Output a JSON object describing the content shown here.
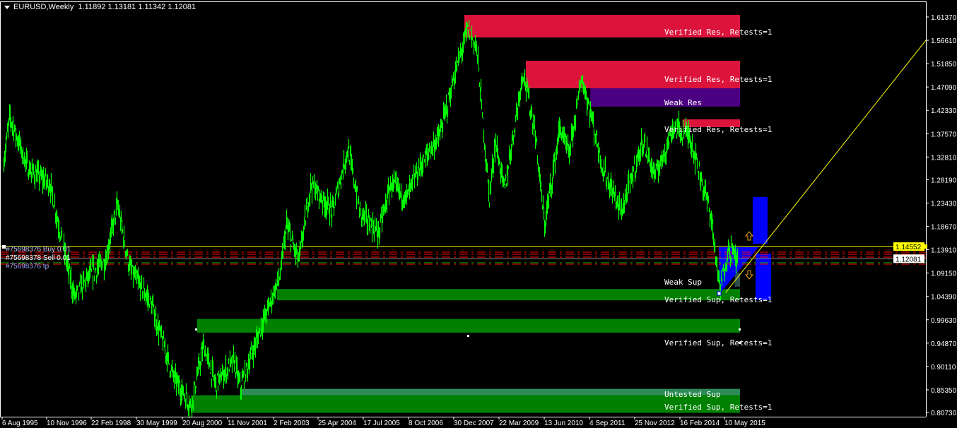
{
  "header": {
    "symbol_timeframe": "EURUSD,Weekly",
    "ohlc": "1.11892 1.13181 1.11342 1.12081"
  },
  "colors": {
    "background": "#000000",
    "price": "#00ff00",
    "resistance": "#dc143c",
    "weak_resistance": "#4b0082",
    "support": "#008000",
    "untested_support": "#2e8b57",
    "blue_box": "#0000ff",
    "trendline": "#ffff00",
    "axis": "#ffffff"
  },
  "chart_data": {
    "type": "line",
    "symbol": "EURUSD",
    "timeframe": "Weekly",
    "ylim": [
      0.8073,
      1.6137
    ],
    "y_ticks": [
      "1.61370",
      "1.56610",
      "1.51850",
      "1.47090",
      "1.42330",
      "1.37570",
      "1.32810",
      "1.28190",
      "1.23430",
      "1.18670",
      "1.13910",
      "1.09150",
      "1.04390",
      "0.99630",
      "0.94870",
      "0.90110",
      "0.85350",
      "0.80730"
    ],
    "x_ticks": [
      "6 Aug 1995",
      "10 Nov 1996",
      "22 Feb 1998",
      "30 May 1999",
      "20 Aug 2000",
      "11 Nov 2001",
      "2 Feb 2003",
      "25 Apr 2004",
      "17 Jul 2005",
      "8 Oct 2006",
      "30 Dec 2007",
      "22 Mar 2009",
      "13 Jun 2010",
      "4 Sep 2011",
      "25 Nov 2012",
      "16 Feb 2014",
      "10 May 2015"
    ],
    "price_path": [
      [
        "1995-08",
        1.317
      ],
      [
        "1995-10",
        1.411
      ],
      [
        "1996-04",
        1.303
      ],
      [
        "1996-11",
        1.274
      ],
      [
        "1997-07",
        1.043
      ],
      [
        "1997-12",
        1.087
      ],
      [
        "1998-05",
        1.115
      ],
      [
        "1998-09",
        1.231
      ],
      [
        "1999-01",
        1.101
      ],
      [
        "1999-08",
        1.029
      ],
      [
        "2000-03",
        0.885
      ],
      [
        "2000-09",
        0.82
      ],
      [
        "2001-01",
        0.943
      ],
      [
        "2001-05",
        0.864
      ],
      [
        "2001-11",
        0.914
      ],
      [
        "2002-01",
        0.857
      ],
      [
        "2002-08",
        0.986
      ],
      [
        "2003-02",
        1.087
      ],
      [
        "2003-04",
        1.188
      ],
      [
        "2003-08",
        1.115
      ],
      [
        "2003-12",
        1.274
      ],
      [
        "2004-07",
        1.216
      ],
      [
        "2004-12",
        1.346
      ],
      [
        "2005-04",
        1.216
      ],
      [
        "2005-10",
        1.173
      ],
      [
        "2006-02",
        1.274
      ],
      [
        "2006-07",
        1.245
      ],
      [
        "2006-11",
        1.303
      ],
      [
        "2007-06",
        1.375
      ],
      [
        "2007-10",
        1.476
      ],
      [
        "2008-03",
        1.591
      ],
      [
        "2008-06",
        1.547
      ],
      [
        "2008-10",
        1.245
      ],
      [
        "2008-12",
        1.36
      ],
      [
        "2009-03",
        1.26
      ],
      [
        "2009-09",
        1.505
      ],
      [
        "2010-01",
        1.375
      ],
      [
        "2010-04",
        1.188
      ],
      [
        "2010-09",
        1.389
      ],
      [
        "2010-12",
        1.332
      ],
      [
        "2011-04",
        1.49
      ],
      [
        "2011-07",
        1.418
      ],
      [
        "2011-11",
        1.303
      ],
      [
        "2012-05",
        1.216
      ],
      [
        "2012-12",
        1.361
      ],
      [
        "2013-04",
        1.289
      ],
      [
        "2013-10",
        1.389
      ],
      [
        "2014-03",
        1.375
      ],
      [
        "2014-08",
        1.26
      ],
      [
        "2014-10",
        1.216
      ],
      [
        "2015-01",
        1.057
      ],
      [
        "2015-04",
        1.144
      ],
      [
        "2015-07",
        1.115
      ]
    ],
    "zones": [
      {
        "label": "Verified Res, Retests=1",
        "kind": "resistance",
        "start": "2008-02",
        "top": 1.618,
        "bottom": 1.5719
      },
      {
        "label": "Verified Res, Retests=1",
        "kind": "resistance",
        "start": "2009-10",
        "top": 1.5244,
        "bottom": 1.4683
      },
      {
        "label": "Weak Res",
        "kind": "weak_resistance",
        "start": "2011-07",
        "top": 1.4683,
        "bottom": 1.4308
      },
      {
        "label": "Verified Res, Retests=1",
        "kind": "resistance",
        "start": "2014-01",
        "top": 1.405,
        "bottom": 1.389
      },
      {
        "label": "Weak Sup",
        "kind": "weak_support",
        "start": "2015-06",
        "top": 1.092,
        "bottom": 1.064
      },
      {
        "label": "Verified Sup, Retests=1",
        "kind": "support",
        "start": "2003-01",
        "top": 1.059,
        "bottom": 1.036
      },
      {
        "label": "Verified Sup, Retests=1",
        "kind": "support",
        "start": "2000-11",
        "top": 0.998,
        "bottom": 0.97
      },
      {
        "label": "Untested Sup",
        "kind": "untested_support",
        "start": "2002-01",
        "top": 0.8554,
        "bottom": 0.8425
      },
      {
        "label": "Verified Sup, Retests=1",
        "kind": "support",
        "start": "2000-09",
        "top": 0.8425,
        "bottom": 0.8065
      }
    ],
    "horizontal_lines": [
      {
        "price": 1.14552,
        "color": "#ffff00",
        "style": "solid"
      },
      {
        "price": 1.1342,
        "color": "#ff0000",
        "style": "dashdot"
      },
      {
        "price": 1.1298,
        "color": "#ff0000",
        "style": "dashdot"
      },
      {
        "price": 1.1241,
        "color": "#ff0000",
        "style": "dashdot"
      },
      {
        "price": 1.1126,
        "color": "#00c000",
        "style": "dashdot"
      },
      {
        "price": 1.1097,
        "color": "#ff0000",
        "style": "dashdot"
      },
      {
        "price": 1.12081,
        "color": "#808080",
        "style": "solid"
      }
    ],
    "trendline": {
      "from": [
        "2015-03",
        1.0517
      ],
      "to": [
        "2020-12",
        1.5661
      ]
    },
    "current_price": "1.12081",
    "line_price": "1.14552"
  },
  "order_labels": [
    "#75698376 Buy 0.01",
    "#75698378 Sell 0.01",
    "#75698376 tp"
  ]
}
